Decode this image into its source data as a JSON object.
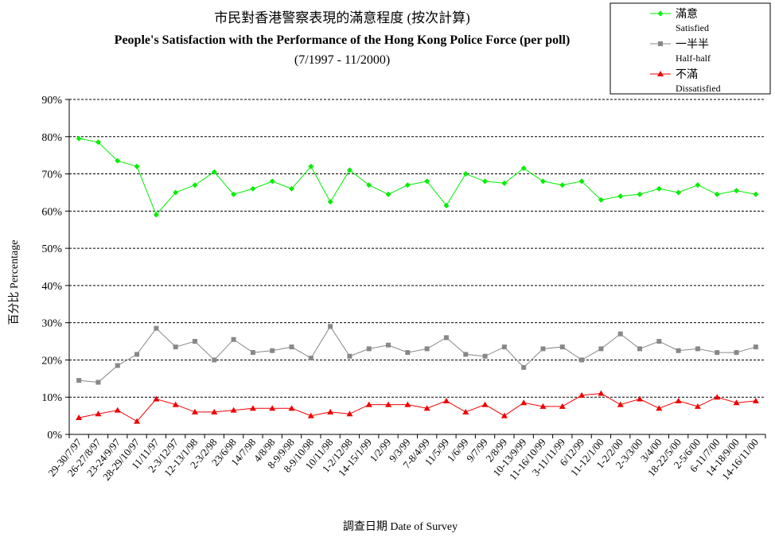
{
  "chart_data": {
    "type": "line",
    "title_zh": "市民對香港警察表現的滿意程度 (按次計算)",
    "title_en": "People's Satisfaction with the Performance of the Hong Kong Police Force (per poll)",
    "subtitle": "(7/1997 - 11/2000)",
    "ylabel": "百分比 Percentage",
    "xlabel": "調查日期 Date of Survey",
    "ylim": [
      0,
      90
    ],
    "yticks": [
      "0%",
      "10%",
      "20%",
      "30%",
      "40%",
      "50%",
      "60%",
      "70%",
      "80%",
      "90%"
    ],
    "grid": true,
    "legend_position": "top-right",
    "categories": [
      "29-30/7/97",
      "26-27/8/97",
      "23-24/9/97",
      "28-29/10/97",
      "11/11/97",
      "2-3/12/97",
      "12-13/1/98",
      "2-3/2/98",
      "23/6/98",
      "14/7/98",
      "4/8/98",
      "8-9/9/98",
      "8-9/10/98",
      "10/11/98",
      "1-2/12/98",
      "14-15/1/99",
      "1/2/99",
      "9/3/99",
      "7-8/4/99",
      "11/5/99",
      "1/6/99",
      "9/7/99",
      "2/8/99",
      "10-13/9/99",
      "11-16/10/99",
      "3-11/11/99",
      "6/12/99",
      "11-12/1/00",
      "1-2/2/00",
      "2-3/3/00",
      "3/4/00",
      "18-22/5/00",
      "2-5/6/00",
      "6-11/7/00",
      "14-18/9/00",
      "14-16/11/00"
    ],
    "series": [
      {
        "name": "滿意",
        "name_en": "Satisfied",
        "color": "#00ee00",
        "marker": "diamond",
        "values": [
          79.5,
          78.5,
          73.5,
          72,
          59,
          65,
          67,
          70.5,
          64.5,
          66,
          68,
          66,
          72,
          62.5,
          71,
          67,
          64.5,
          67,
          68,
          61.5,
          70,
          68,
          67.5,
          71.5,
          68,
          67,
          68,
          63,
          64,
          64.5,
          66,
          65,
          67,
          64.5,
          65.5,
          64.5
        ]
      },
      {
        "name": "一半半",
        "name_en": "Half-half",
        "color": "#888888",
        "marker": "square",
        "values": [
          14.5,
          14,
          18.5,
          21.5,
          28.5,
          23.5,
          25,
          20,
          25.5,
          22,
          22.5,
          23.5,
          20.5,
          29,
          21,
          23,
          24,
          22,
          23,
          26,
          21.5,
          21,
          23.5,
          18,
          23,
          23.5,
          20,
          23,
          27,
          23,
          25,
          22.5,
          23,
          22,
          22,
          23.5
        ]
      },
      {
        "name": "不滿",
        "name_en": "Dissatisfied",
        "color": "#ee0000",
        "marker": "triangle",
        "values": [
          4.5,
          5.5,
          6.5,
          3.5,
          9.5,
          8,
          6,
          6,
          6.5,
          7,
          7,
          7,
          5,
          6,
          5.5,
          8,
          8,
          8,
          7,
          9,
          6,
          8,
          5,
          8.5,
          7.5,
          7.5,
          10.5,
          11,
          8,
          9.5,
          7,
          9,
          7.5,
          10,
          8.5,
          9
        ]
      }
    ]
  }
}
